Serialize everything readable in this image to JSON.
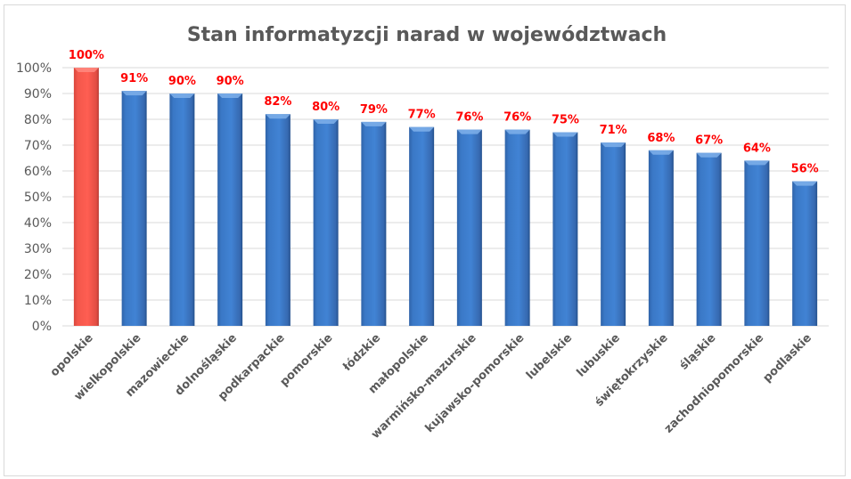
{
  "chart_data": {
    "type": "bar",
    "title": "Stan informatyzcji narad w województwach",
    "xlabel": "",
    "ylabel": "",
    "ylim": [
      0,
      100
    ],
    "yticks": [
      "0%",
      "10%",
      "20%",
      "30%",
      "40%",
      "50%",
      "60%",
      "70%",
      "80%",
      "90%",
      "100%"
    ],
    "grid": true,
    "legend": "none",
    "categories": [
      "opolskie",
      "wielkopolskie",
      "mazowieckie",
      "dolnośląskie",
      "podkarpackie",
      "pomorskie",
      "łódzkie",
      "małopolskie",
      "warmińsko-mazurskie",
      "kujawsko-pomorskie",
      "lubelskie",
      "lubuskie",
      "świętokrzyskie",
      "śląskie",
      "zachodniopomorskie",
      "podlaskie"
    ],
    "values": [
      100,
      91,
      90,
      90,
      82,
      80,
      79,
      77,
      76,
      76,
      75,
      71,
      68,
      67,
      64,
      56
    ],
    "data_labels": [
      "100%",
      "91%",
      "90%",
      "90%",
      "82%",
      "80%",
      "79%",
      "77%",
      "76%",
      "76%",
      "75%",
      "71%",
      "68%",
      "67%",
      "64%",
      "56%"
    ],
    "colors": {
      "highlight_bar": "#ff5a4e",
      "bar": "#3d7ccc",
      "data_label": "#ff0000",
      "text": "#595959",
      "grid": "#d9d9d9"
    },
    "highlight_index": 0
  }
}
